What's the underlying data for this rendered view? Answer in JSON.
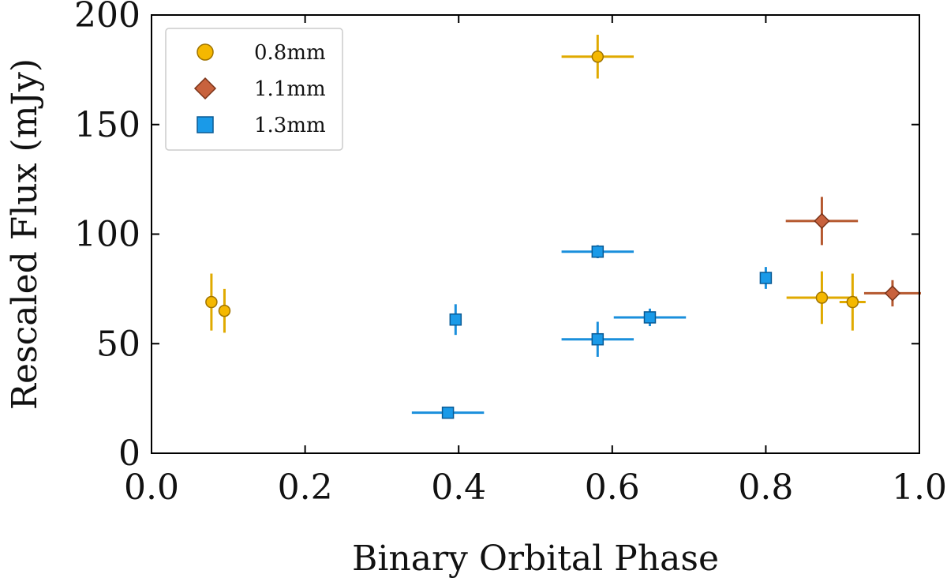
{
  "chart_data": {
    "type": "scatter",
    "title": "",
    "xlabel": "Binary Orbital Phase",
    "ylabel": "Rescaled Flux (mJy)",
    "xlim": [
      0.0,
      1.0
    ],
    "ylim": [
      0,
      200
    ],
    "xticks": [
      "0.0",
      "0.2",
      "0.4",
      "0.6",
      "0.8",
      "1.0"
    ],
    "yticks": [
      "0",
      "50",
      "100",
      "150",
      "200"
    ],
    "grid": false,
    "legend_position": "top-left",
    "series": [
      {
        "name": "0.8mm",
        "marker": "circle",
        "color": "#f5b800",
        "edge_color": "#a07400",
        "error_color": "#e0aa00",
        "points": [
          {
            "x": 0.078,
            "y": 69,
            "xerr": 0.0,
            "yerr": 13
          },
          {
            "x": 0.095,
            "y": 65,
            "xerr": 0.0,
            "yerr": 10
          },
          {
            "x": 0.581,
            "y": 181,
            "xerr": 0.047,
            "yerr": 10
          },
          {
            "x": 0.873,
            "y": 71,
            "xerr": 0.046,
            "yerr": 12
          },
          {
            "x": 0.913,
            "y": 69,
            "xerr": 0.017,
            "yerr": 13
          }
        ]
      },
      {
        "name": "1.1mm",
        "marker": "diamond",
        "color": "#c8623d",
        "edge_color": "#7a3318",
        "error_color": "#b5582f",
        "points": [
          {
            "x": 0.873,
            "y": 106,
            "xerr": 0.047,
            "yerr": 11
          },
          {
            "x": 0.965,
            "y": 73,
            "xerr": 0.037,
            "yerr": 6
          }
        ]
      },
      {
        "name": "1.3mm",
        "marker": "square",
        "color": "#1a9ae8",
        "edge_color": "#0a5a94",
        "error_color": "#1a8fdc",
        "points": [
          {
            "x": 0.386,
            "y": 18.5,
            "xerr": 0.047,
            "yerr": 2
          },
          {
            "x": 0.396,
            "y": 61,
            "xerr": 0.0,
            "yerr": 7
          },
          {
            "x": 0.581,
            "y": 92,
            "xerr": 0.047,
            "yerr": 3
          },
          {
            "x": 0.581,
            "y": 52,
            "xerr": 0.047,
            "yerr": 8
          },
          {
            "x": 0.649,
            "y": 62,
            "xerr": 0.047,
            "yerr": 4
          },
          {
            "x": 0.8,
            "y": 80,
            "xerr": 0.0,
            "yerr": 5
          }
        ]
      }
    ]
  }
}
